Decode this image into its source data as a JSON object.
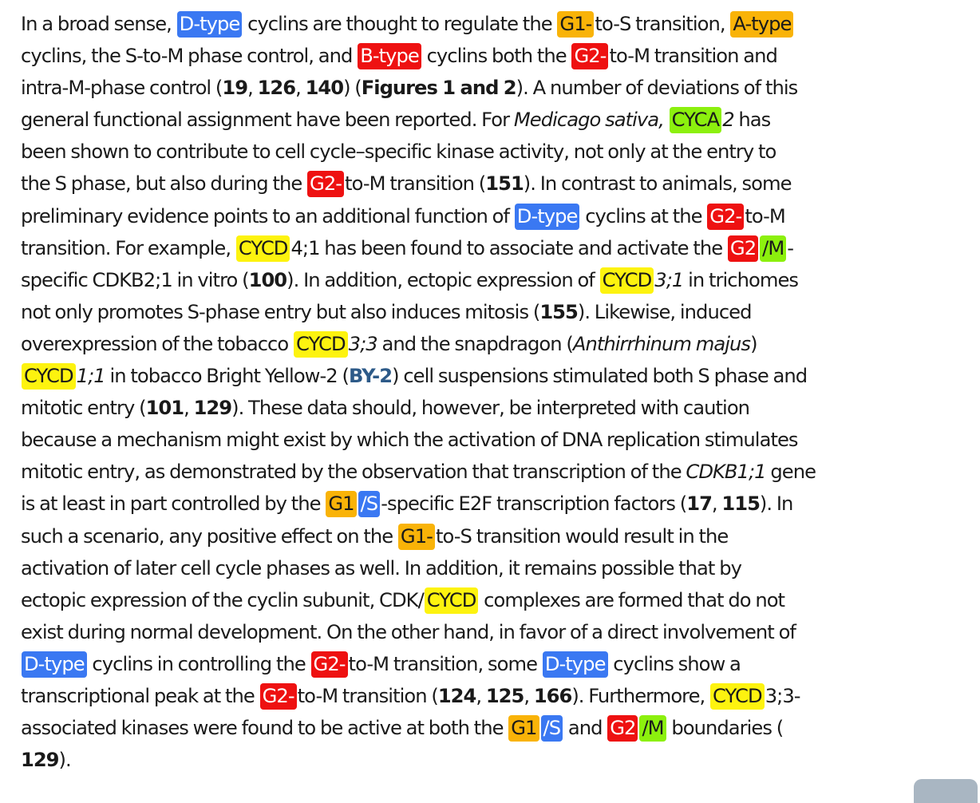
{
  "paragraph": {
    "lines": [
      [
        {
          "t": "In a broad sense, "
        },
        {
          "t": "D-type",
          "hl": "blue"
        },
        {
          "t": " cyclins are thought to regulate the "
        },
        {
          "t": "G1-",
          "hl": "orange"
        },
        {
          "t": "to-S transition, "
        },
        {
          "t": "A-type",
          "hl": "orange"
        }
      ],
      [
        {
          "t": "cyclins, the S-to-M phase control, and "
        },
        {
          "t": "B-type",
          "hl": "red"
        },
        {
          "t": " cyclins both the "
        },
        {
          "t": "G2-",
          "hl": "red"
        },
        {
          "t": "to-M transition and"
        }
      ],
      [
        {
          "t": "intra-M-phase control ("
        },
        {
          "t": "19",
          "s": "ref"
        },
        {
          "t": ", "
        },
        {
          "t": "126",
          "s": "ref"
        },
        {
          "t": ", "
        },
        {
          "t": "140",
          "s": "ref"
        },
        {
          "t": ") ("
        },
        {
          "t": "Figures 1 and 2",
          "s": "bold"
        },
        {
          "t": "). A number of deviations of this"
        }
      ],
      [
        {
          "t": "general functional assignment have been reported. For "
        },
        {
          "t": "Medicago sativa,",
          "s": "it"
        },
        {
          "t": " "
        },
        {
          "t": "CYCA",
          "hl": "green"
        },
        {
          "t": "2",
          "s": "it"
        },
        {
          "t": " has"
        }
      ],
      [
        {
          "t": "been shown to contribute to cell cycle–specific kinase activity, not only at the entry to"
        }
      ],
      [
        {
          "t": "the S phase, but also during the "
        },
        {
          "t": "G2-",
          "hl": "red"
        },
        {
          "t": "to-M transition ("
        },
        {
          "t": "151",
          "s": "ref"
        },
        {
          "t": "). In contrast to animals, some"
        }
      ],
      [
        {
          "t": "preliminary evidence points to an additional function of "
        },
        {
          "t": "D-type",
          "hl": "blue"
        },
        {
          "t": " cyclins at the "
        },
        {
          "t": "G2-",
          "hl": "red"
        },
        {
          "t": "to-M"
        }
      ],
      [
        {
          "t": "transition. For example, "
        },
        {
          "t": "CYCD",
          "hl": "yellow"
        },
        {
          "t": "4;1 has been found to associate and activate the "
        },
        {
          "t": "G2",
          "hl": "red"
        },
        {
          "t": "/M",
          "hl": "green"
        },
        {
          "t": "-"
        }
      ],
      [
        {
          "t": "specific CDKB2;1 in vitro ("
        },
        {
          "t": "100",
          "s": "ref"
        },
        {
          "t": "). In addition, ectopic expression of "
        },
        {
          "t": "CYCD",
          "hl": "yellow"
        },
        {
          "t": "3;1",
          "s": "it"
        },
        {
          "t": " in trichomes"
        }
      ],
      [
        {
          "t": "not only promotes S-phase entry but also induces mitosis ("
        },
        {
          "t": "155",
          "s": "ref"
        },
        {
          "t": "). Likewise, induced"
        }
      ],
      [
        {
          "t": "overexpression of the tobacco "
        },
        {
          "t": "CYCD",
          "hl": "yellow"
        },
        {
          "t": "3;3",
          "s": "it"
        },
        {
          "t": " and the snapdragon ("
        },
        {
          "t": "Anthirrhinum majus",
          "s": "it"
        },
        {
          "t": ")"
        }
      ],
      [
        {
          "t": "CYCD",
          "hl": "yellow"
        },
        {
          "t": "1;1",
          "s": "it"
        },
        {
          "t": " in tobacco Bright Yellow-2 ("
        },
        {
          "t": "BY-2",
          "s": "ref-link"
        },
        {
          "t": ") cell suspensions stimulated both S phase and"
        }
      ],
      [
        {
          "t": "mitotic entry ("
        },
        {
          "t": "101",
          "s": "ref"
        },
        {
          "t": ", "
        },
        {
          "t": "129",
          "s": "ref"
        },
        {
          "t": "). These data should, however, be interpreted with caution"
        }
      ],
      [
        {
          "t": "because a mechanism might exist by which the activation of DNA replication stimulates"
        }
      ],
      [
        {
          "t": "mitotic entry, as demonstrated by the observation that transcription of the "
        },
        {
          "t": "CDKB1;1",
          "s": "it"
        },
        {
          "t": " gene"
        }
      ],
      [
        {
          "t": "is at least in part controlled by the "
        },
        {
          "t": "G1",
          "hl": "orange"
        },
        {
          "t": "/S",
          "hl": "blue"
        },
        {
          "t": "-specific E2F transcription factors ("
        },
        {
          "t": "17",
          "s": "ref"
        },
        {
          "t": ", "
        },
        {
          "t": "115",
          "s": "ref"
        },
        {
          "t": "). In"
        }
      ],
      [
        {
          "t": "such a scenario, any positive effect on the "
        },
        {
          "t": "G1-",
          "hl": "orange"
        },
        {
          "t": "to-S transition would result in the"
        }
      ],
      [
        {
          "t": "activation of later cell cycle phases as well. In addition, it remains possible that by"
        }
      ],
      [
        {
          "t": "ectopic expression of the cyclin subunit, CDK/"
        },
        {
          "t": "CYCD",
          "hl": "yellow"
        },
        {
          "t": " complexes are formed that do not"
        }
      ],
      [
        {
          "t": "exist during normal development. On the other hand, in favor of a direct involvement of"
        }
      ],
      [
        {
          "t": "D-type",
          "hl": "blue"
        },
        {
          "t": " cyclins in controlling the "
        },
        {
          "t": "G2-",
          "hl": "red"
        },
        {
          "t": "to-M transition, some "
        },
        {
          "t": "D-type",
          "hl": "blue"
        },
        {
          "t": " cyclins show a"
        }
      ],
      [
        {
          "t": "transcriptional peak at the "
        },
        {
          "t": "G2-",
          "hl": "red"
        },
        {
          "t": "to-M transition ("
        },
        {
          "t": "124",
          "s": "ref"
        },
        {
          "t": ", "
        },
        {
          "t": "125",
          "s": "ref"
        },
        {
          "t": ", "
        },
        {
          "t": "166",
          "s": "ref"
        },
        {
          "t": "). Furthermore, "
        },
        {
          "t": "CYCD",
          "hl": "yellow"
        },
        {
          "t": "3;3-"
        }
      ],
      [
        {
          "t": "associated kinases were found to be active at both the "
        },
        {
          "t": "G1",
          "hl": "orange"
        },
        {
          "t": "/S",
          "hl": "blue"
        },
        {
          "t": " and "
        },
        {
          "t": "G2",
          "hl": "red"
        },
        {
          "t": "/M",
          "hl": "green"
        },
        {
          "t": " boundaries ("
        }
      ],
      [
        {
          "t": "129",
          "s": "ref"
        },
        {
          "t": ")."
        }
      ]
    ]
  },
  "highlight_colors": {
    "blue": "#3a78f2",
    "red": "#ee1111",
    "orange": "#f9b308",
    "yellow": "#fdf30f",
    "green": "#8cf00e"
  },
  "link_color": "#2d5a88"
}
